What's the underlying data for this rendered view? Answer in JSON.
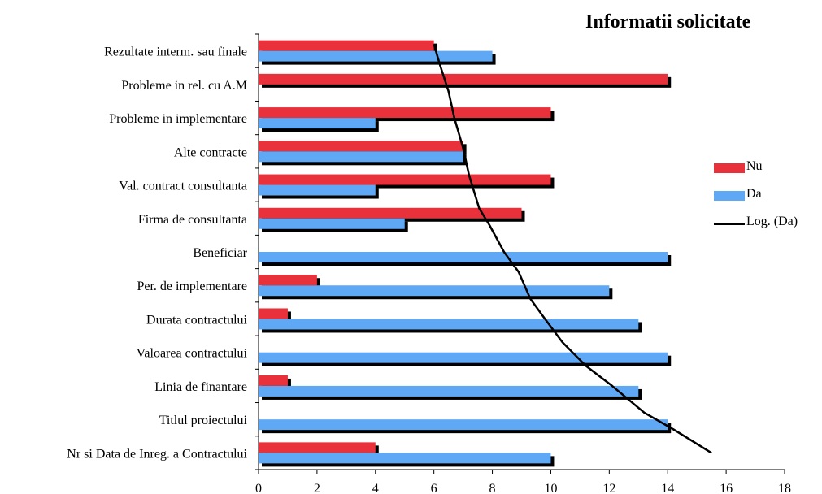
{
  "chart_data": {
    "type": "bar",
    "orientation": "horizontal",
    "title": "Informatii solicitate",
    "categories": [
      "Nr si Data de Inreg. a Contractului",
      "Titlul proiectului",
      "Linia de finantare",
      "Valoarea contractului",
      "Durata contractului",
      "Per. de implementare",
      "Beneficiar",
      "Firma de consultanta",
      "Val. contract consultanta",
      "Alte contracte",
      "Probleme in implementare",
      "Probleme in rel. cu A.M",
      "Rezultate interm. sau finale"
    ],
    "series": [
      {
        "name": "Nu",
        "color": "#e8313a",
        "values": [
          4,
          0,
          1,
          0,
          1,
          2,
          0,
          9,
          10,
          7,
          10,
          14,
          6
        ]
      },
      {
        "name": "Da",
        "color": "#5fa8f5",
        "values": [
          10,
          14,
          13,
          14,
          13,
          12,
          14,
          5,
          4,
          7,
          4,
          0,
          8
        ]
      }
    ],
    "trendline": {
      "name": "Log. (Da)",
      "type": "logarithmic",
      "color": "#000000",
      "points": [
        [
          15.5,
          1
        ],
        [
          14.2,
          1.7
        ],
        [
          13.2,
          2.2
        ],
        [
          12.1,
          3.0
        ],
        [
          11.2,
          3.6
        ],
        [
          10.4,
          4.3
        ],
        [
          9.8,
          5.0
        ],
        [
          9.3,
          5.6
        ],
        [
          8.9,
          6.4
        ],
        [
          8.4,
          7.0
        ],
        [
          7.9,
          7.8
        ],
        [
          7.55,
          8.3
        ],
        [
          7.2,
          9.3
        ],
        [
          7.0,
          10.1
        ],
        [
          6.7,
          11.0
        ],
        [
          6.5,
          11.8
        ],
        [
          6.2,
          12.6
        ],
        [
          6.0,
          13.2
        ]
      ]
    },
    "xlim": [
      0,
      18
    ],
    "xticks": [
      "0",
      "2",
      "4",
      "6",
      "8",
      "10",
      "12",
      "14",
      "16",
      "18"
    ],
    "legend_position": "right",
    "grid": false
  }
}
